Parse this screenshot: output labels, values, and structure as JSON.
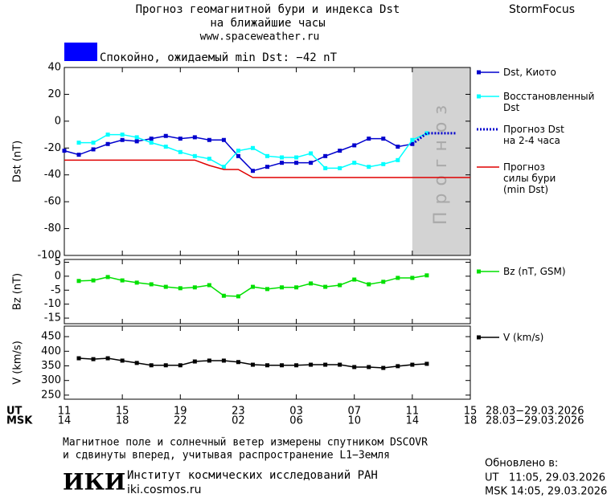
{
  "header": {
    "title": "Прогноз геомагнитной бури и индекса Dst",
    "title2": "на ближайшие часы",
    "site": "www.spaceweather.ru",
    "brand": "StormFocus",
    "status": "Спокойно, ожидаемый min Dst: −42 nT",
    "status_color": "#0000ff"
  },
  "x_axis": {
    "ut_label": "UT",
    "msk_label": "MSK",
    "date_range": "28.03−29.03.2026",
    "xticks": [
      {
        "value": 0,
        "label": "11"
      },
      {
        "value": 4,
        "label": "15"
      },
      {
        "value": 8,
        "label": "19"
      },
      {
        "value": 12,
        "label": "23"
      },
      {
        "value": 16,
        "label": "03"
      },
      {
        "value": 20,
        "label": "07"
      },
      {
        "value": 24,
        "label": "11"
      },
      {
        "value": 28,
        "label": "15"
      }
    ],
    "msk_ticks": [
      {
        "value": 0,
        "label": "14"
      },
      {
        "value": 4,
        "label": "18"
      },
      {
        "value": 8,
        "label": "22"
      },
      {
        "value": 12,
        "label": "02"
      },
      {
        "value": 16,
        "label": "06"
      },
      {
        "value": 20,
        "label": "10"
      },
      {
        "value": 24,
        "label": "14"
      },
      {
        "value": 28,
        "label": "18"
      }
    ]
  },
  "chart_data": [
    {
      "type": "line",
      "ylabel": "Dst (nT)",
      "xlim": [
        0,
        28
      ],
      "ylim": [
        -100,
        40
      ],
      "yticks": [
        40,
        20,
        0,
        -20,
        -40,
        -60,
        -80,
        -100
      ],
      "shade": {
        "x": [
          24,
          28
        ],
        "label": "Прогноз",
        "color": "#d3d3d3"
      },
      "series": [
        {
          "name": "Dst, Киото",
          "color": "#0000cd",
          "marker": true,
          "x": [
            0,
            1,
            2,
            3,
            4,
            5,
            6,
            7,
            8,
            9,
            10,
            11,
            12,
            13,
            14,
            15,
            16,
            17,
            18,
            19,
            20,
            21,
            22,
            23,
            24
          ],
          "values": [
            -22,
            -25,
            -21,
            -17,
            -14,
            -15,
            -13,
            -11,
            -13,
            -12,
            -14,
            -14,
            -26,
            -37,
            -34,
            -31,
            -31,
            -31,
            -26,
            -22,
            -18,
            -13,
            -13,
            -19,
            -17
          ]
        },
        {
          "name": "Восстановленный\nDst",
          "color": "#00ffff",
          "marker": true,
          "x": [
            1,
            2,
            3,
            4,
            5,
            6,
            7,
            8,
            9,
            10,
            11,
            12,
            13,
            14,
            15,
            16,
            17,
            18,
            19,
            20,
            21,
            22,
            23,
            24,
            25
          ],
          "values": [
            -16,
            -16,
            -10,
            -10,
            -12,
            -16,
            -19,
            -23,
            -26,
            -28,
            -34,
            -22,
            -20,
            -26,
            -27,
            -27,
            -24,
            -35,
            -35,
            -31,
            -34,
            -32,
            -29,
            -14,
            -9
          ]
        },
        {
          "name": "Прогноз Dst\nна 2-4 часа",
          "color": "#0000cd",
          "dotted": true,
          "x": [
            24,
            25,
            26,
            27
          ],
          "values": [
            -17,
            -9,
            -9,
            -9
          ]
        },
        {
          "name": "Прогноз\nсилы бури\n(min Dst)",
          "color": "#e00000",
          "x": [
            0,
            9,
            10,
            11,
            12,
            13,
            28
          ],
          "values": [
            -29,
            -29,
            -33,
            -36,
            -36,
            -42,
            -42
          ]
        }
      ]
    },
    {
      "type": "line",
      "ylabel": "Bz (nT)",
      "xlim": [
        0,
        28
      ],
      "ylim": [
        -17,
        6
      ],
      "yticks": [
        5,
        0,
        -5,
        -10,
        -15
      ],
      "series": [
        {
          "name": "Bz (nT, GSM)",
          "color": "#00e000",
          "marker": true,
          "x": [
            1,
            2,
            3,
            4,
            5,
            6,
            7,
            8,
            9,
            10,
            11,
            12,
            13,
            14,
            15,
            16,
            17,
            18,
            19,
            20,
            21,
            22,
            23,
            24,
            25
          ],
          "values": [
            -1.7,
            -1.5,
            -0.3,
            -1.5,
            -2.3,
            -2.9,
            -3.8,
            -4.3,
            -4,
            -3.2,
            -7,
            -7.2,
            -3.8,
            -4.6,
            -4,
            -4,
            -2.6,
            -3.8,
            -3.2,
            -1.2,
            -2.9,
            -2,
            -0.6,
            -0.6,
            0.3
          ]
        }
      ]
    },
    {
      "type": "line",
      "ylabel": "V (km/s)",
      "xlim": [
        0,
        28
      ],
      "ylim": [
        236,
        486
      ],
      "yticks": [
        450,
        400,
        350,
        300,
        250
      ],
      "series": [
        {
          "name": "V (km/s)",
          "color": "#000000",
          "marker": true,
          "x": [
            1,
            2,
            3,
            4,
            5,
            6,
            7,
            8,
            9,
            10,
            11,
            12,
            13,
            14,
            15,
            16,
            17,
            18,
            19,
            20,
            21,
            22,
            23,
            24,
            25
          ],
          "values": [
            376,
            373,
            376,
            368,
            360,
            352,
            352,
            352,
            365,
            368,
            368,
            363,
            354,
            352,
            352,
            352,
            354,
            354,
            354,
            346,
            346,
            343,
            349,
            354,
            357
          ]
        }
      ]
    }
  ],
  "footer": {
    "note1": "Магнитное поле и солнечный ветер измерены спутником DSCOVR",
    "note2": "и сдвинуты вперед, учитывая распространение L1−Земля",
    "logo": "ИКИ",
    "institute": "Институт космических исследований РАН",
    "url": "iki.cosmos.ru",
    "updated": "Обновлено в:",
    "ut_time": "UT   11:05, 29.03.2026",
    "msk_time": "MSK 14:05, 29.03.2026"
  }
}
